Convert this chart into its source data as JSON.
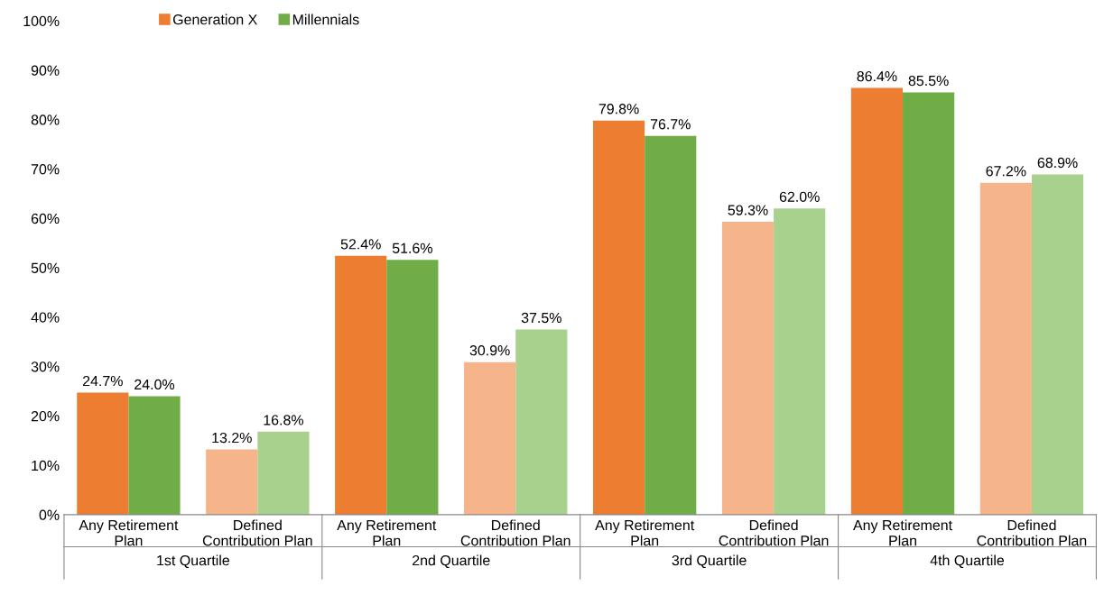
{
  "chart_data": {
    "type": "bar",
    "categories": [
      "Any Retirement\nPlan",
      "Defined\nContribution Plan",
      "Any Retirement\nPlan",
      "Defined\nContribution Plan",
      "Any Retirement\nPlan",
      "Defined\nContribution Plan",
      "Any Retirement\nPlan",
      "Defined\nContribution Plan"
    ],
    "annotations": [
      "1st Quartile",
      "2nd Quartile",
      "3rd Quartile",
      "4th Quartile"
    ],
    "series": [
      {
        "name": "Generation X",
        "color": "#ed7d31",
        "colors": [
          "#ed7d31",
          "#f6b48a",
          "#ed7d31",
          "#f6b48a",
          "#ed7d31",
          "#f6b48a",
          "#ed7d31",
          "#f6b48a"
        ],
        "values": [
          24.7,
          13.2,
          52.4,
          30.9,
          79.8,
          59.3,
          86.4,
          67.2
        ],
        "value_labels": [
          "24.7%",
          "13.2%",
          "52.4%",
          "30.9%",
          "79.8%",
          "59.3%",
          "86.4%",
          "67.2%"
        ]
      },
      {
        "name": "Millennials",
        "color": "#70ad47",
        "colors": [
          "#70ad47",
          "#a9d18e",
          "#70ad47",
          "#a9d18e",
          "#70ad47",
          "#a9d18e",
          "#70ad47",
          "#a9d18e"
        ],
        "values": [
          24.0,
          16.8,
          51.6,
          37.5,
          76.7,
          62.0,
          85.5,
          68.9
        ],
        "value_labels": [
          "24.0%",
          "16.8%",
          "51.6%",
          "37.5%",
          "76.7%",
          "62.0%",
          "85.5%",
          "68.9%"
        ]
      }
    ],
    "ylim": [
      0,
      100
    ],
    "yticks": [
      {
        "value": 0,
        "label": "0%"
      },
      {
        "value": 10,
        "label": "10%"
      },
      {
        "value": 20,
        "label": "20%"
      },
      {
        "value": 30,
        "label": "30%"
      },
      {
        "value": 40,
        "label": "40%"
      },
      {
        "value": 50,
        "label": "50%"
      },
      {
        "value": 60,
        "label": "60%"
      },
      {
        "value": 70,
        "label": "70%"
      },
      {
        "value": 80,
        "label": "80%"
      },
      {
        "value": 90,
        "label": "90%"
      },
      {
        "value": 100,
        "label": "100%"
      }
    ],
    "grid": false,
    "legend": "top left"
  }
}
